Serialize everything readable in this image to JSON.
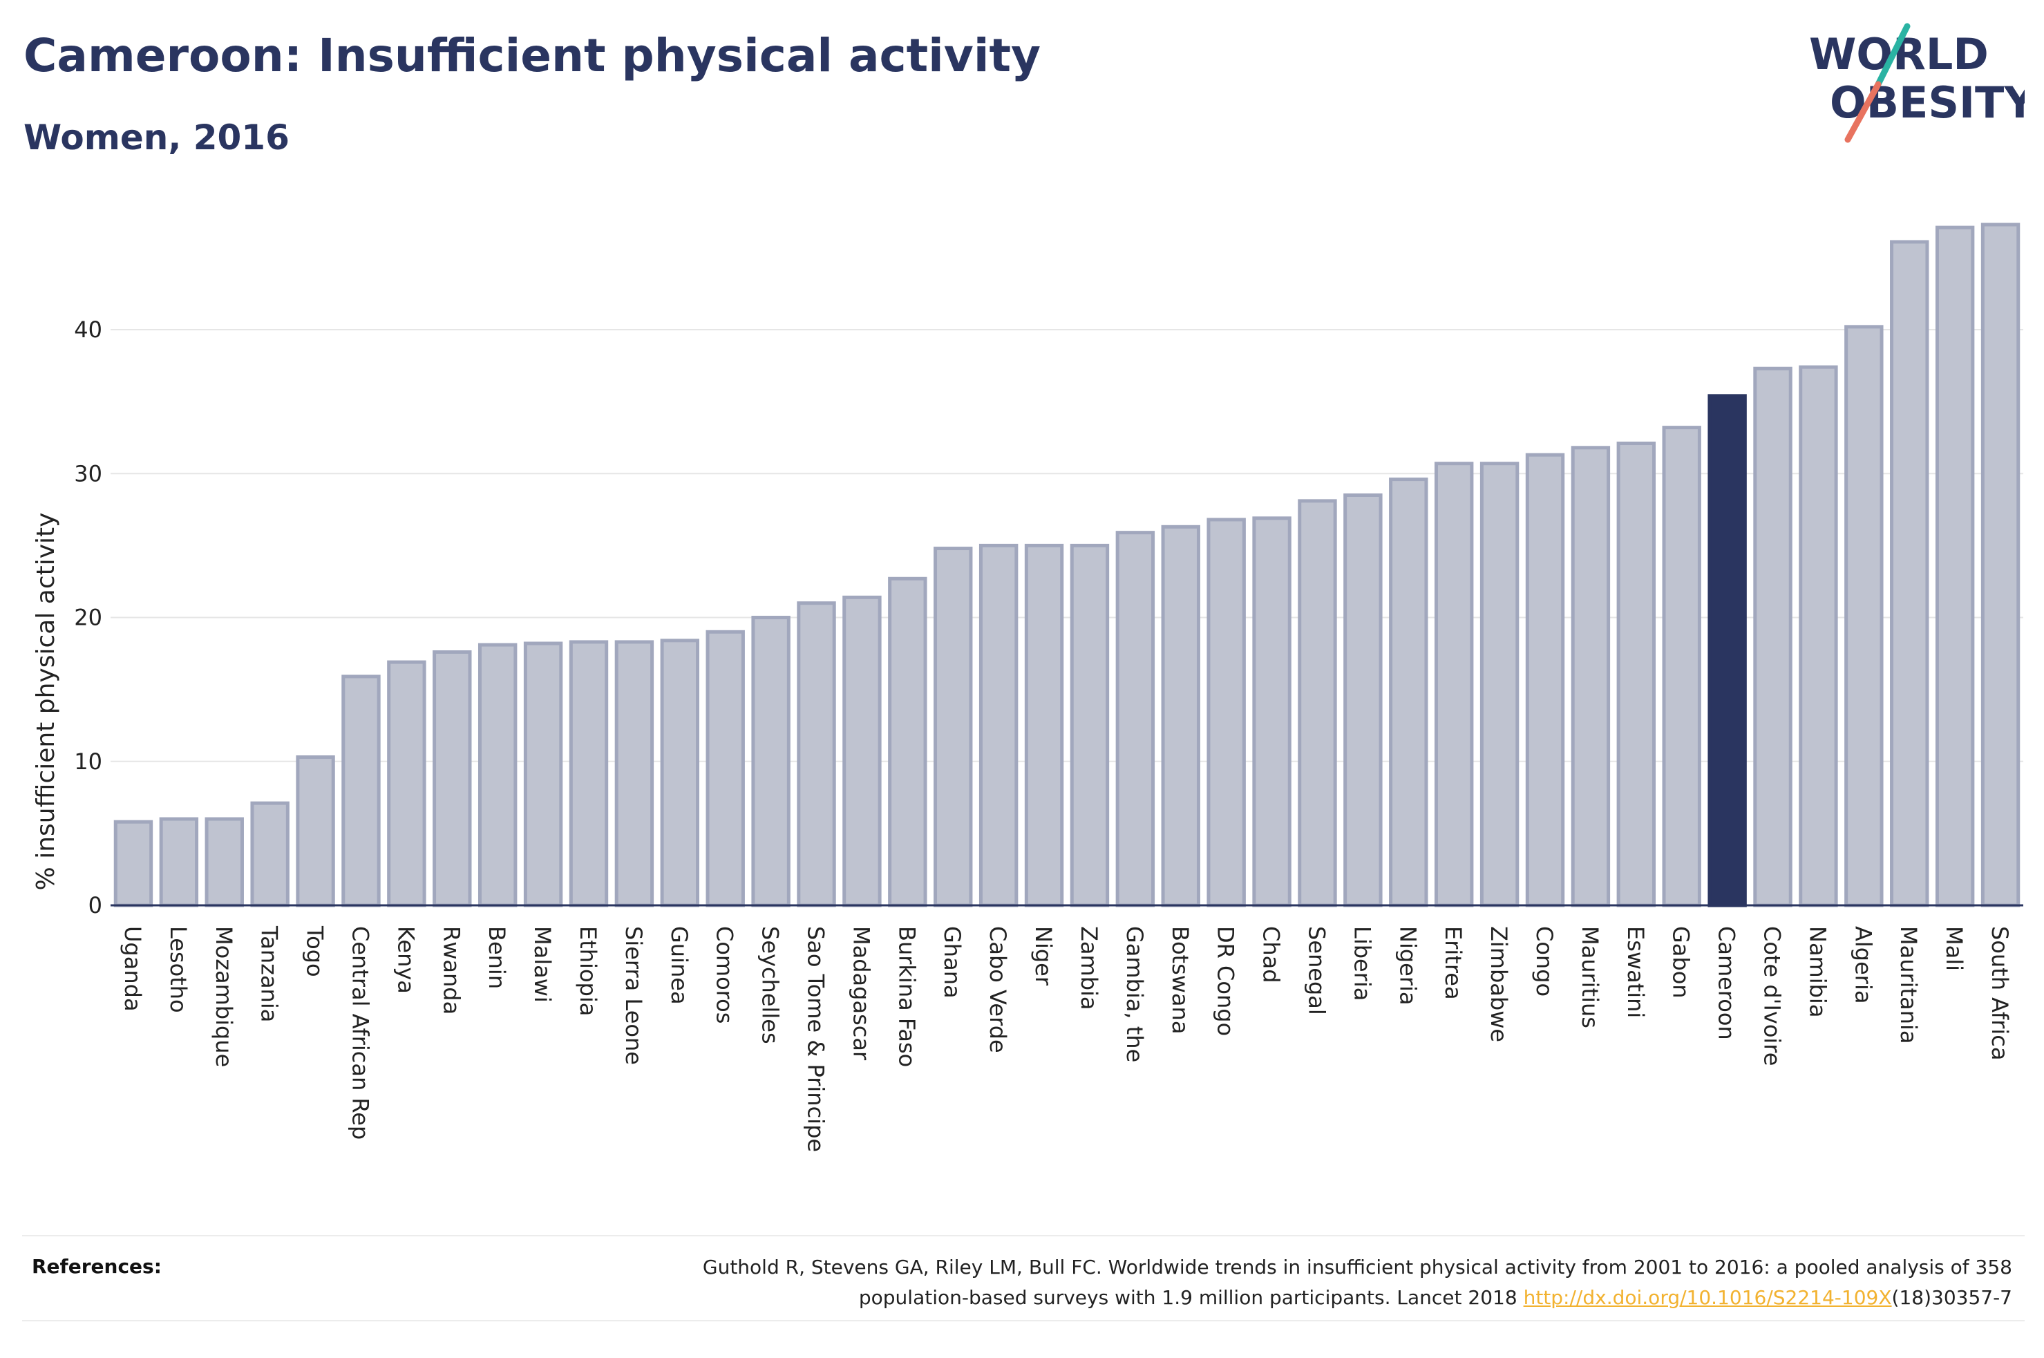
{
  "header": {
    "title": "Cameroon: Insufficient physical activity",
    "subtitle": "Women, 2016"
  },
  "logo": {
    "line1": "WORLD",
    "line2": "OBESITY",
    "text_color": "#2a3560",
    "slash_colors": [
      "#2ab3a3",
      "#e8735f"
    ]
  },
  "colors": {
    "bar": "#bfc3d0",
    "bar_stroke": "#a1a7bd",
    "highlight": "#2a3560",
    "grid": "#e6e6e6",
    "axis": "#2a3560"
  },
  "chart_data": {
    "type": "bar",
    "title": "Cameroon: Insufficient physical activity",
    "subtitle": "Women, 2016",
    "ylabel": "% insufficient physical activity",
    "xlabel": "",
    "ylim": [
      0,
      48.5
    ],
    "yticks": [
      0,
      10,
      20,
      30,
      40
    ],
    "grid": true,
    "highlight": "Cameroon",
    "categories": [
      "Uganda",
      "Lesotho",
      "Mozambique",
      "Tanzania",
      "Togo",
      "Central African Rep",
      "Kenya",
      "Rwanda",
      "Benin",
      "Malawi",
      "Ethiopia",
      "Sierra Leone",
      "Guinea",
      "Comoros",
      "Seychelles",
      "Sao Tome & Principe",
      "Madagascar",
      "Burkina Faso",
      "Ghana",
      "Cabo Verde",
      "Niger",
      "Zambia",
      "Gambia, the",
      "Botswana",
      "DR Congo",
      "Chad",
      "Senegal",
      "Liberia",
      "Nigeria",
      "Eritrea",
      "Zimbabwe",
      "Congo",
      "Mauritius",
      "Eswatini",
      "Gabon",
      "Cameroon",
      "Cote d'Ivoire",
      "Namibia",
      "Algeria",
      "Mauritania",
      "Mali",
      "South Africa"
    ],
    "values": [
      5.8,
      6.0,
      6.0,
      7.1,
      10.3,
      15.9,
      16.9,
      17.6,
      18.1,
      18.2,
      18.3,
      18.3,
      18.4,
      19.0,
      20.0,
      21.0,
      21.4,
      22.7,
      24.8,
      25.0,
      25.0,
      25.0,
      25.9,
      26.3,
      26.8,
      26.9,
      28.1,
      28.5,
      29.6,
      30.7,
      30.7,
      31.3,
      31.8,
      32.1,
      33.2,
      35.4,
      37.3,
      37.4,
      40.2,
      46.1,
      47.1,
      47.3
    ]
  },
  "references": {
    "label": "References:",
    "line1": "Guthold R, Stevens GA, Riley LM, Bull FC. Worldwide trends in insufficient physical activity from 2001 to 2016: a pooled analysis of 358",
    "line2_pre": "population-based surveys with 1.9 million participants. Lancet 2018 ",
    "link": "http://dx.doi.org/10.1016/S2214-109X",
    "line2_post": "(18)30357-7"
  }
}
